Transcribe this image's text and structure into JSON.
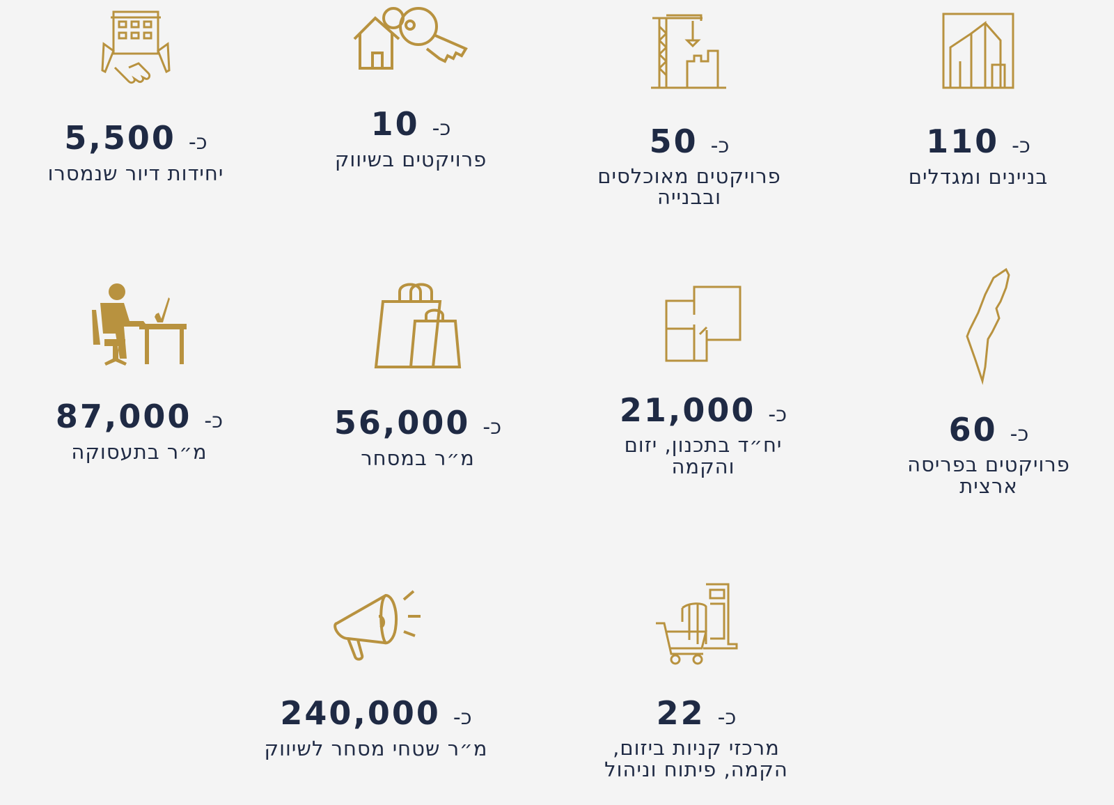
{
  "accent_color": "#b8923f",
  "text_color": "#1f2a44",
  "prefix": "כ-",
  "stats": [
    {
      "icon": "buildings-icon",
      "value": "110",
      "label": "בניינים ומגדלים"
    },
    {
      "icon": "crane-construction-icon",
      "value": "50",
      "label": "פרויקטים מאוכלסים ובבנייה"
    },
    {
      "icon": "house-keys-icon",
      "value": "10",
      "label": "פרויקטים בשיווק"
    },
    {
      "icon": "building-handshake-icon",
      "value": "5,500",
      "label": "יחידות דיור שנמסרו"
    },
    {
      "icon": "israel-map-icon",
      "value": "60",
      "label": "פרויקטים בפריסה ארצית"
    },
    {
      "icon": "floor-plan-icon",
      "value": "21,000",
      "label": "יח״ד בתכנון, יזום והקמה"
    },
    {
      "icon": "shopping-bags-icon",
      "value": "56,000",
      "label": "מ״ר במסחר"
    },
    {
      "icon": "office-worker-icon",
      "value": "87,000",
      "label": "מ״ר בתעסוקה"
    },
    {
      "icon": "shopping-mall-cart-icon",
      "value": "22",
      "label": "מרכזי קניות ביזום, הקמה, פיתוח וניהול"
    },
    {
      "icon": "megaphone-icon",
      "value": "240,000",
      "label": "מ״ר שטחי מסחר לשיווק"
    }
  ]
}
